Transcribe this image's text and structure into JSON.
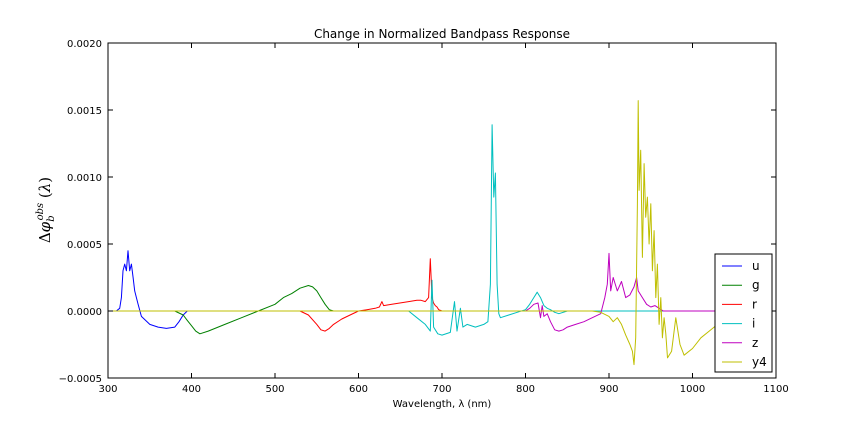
{
  "chart_data": {
    "type": "line",
    "title": "Change in Normalized Bandpass Response",
    "xlabel": "Wavelength, λ (nm)",
    "ylabel": "Δφ_b^obs (λ)",
    "xlim": [
      300,
      1100
    ],
    "ylim": [
      -0.0005,
      0.002
    ],
    "xticks": [
      "300",
      "400",
      "500",
      "600",
      "700",
      "800",
      "900",
      "1000",
      "1100"
    ],
    "yticks": [
      "−0.0005",
      "0.0000",
      "0.0005",
      "0.0010",
      "0.0015",
      "0.0020"
    ],
    "grid": false,
    "legend_position": "lower-right",
    "series": [
      {
        "name": "u",
        "color": "#0000ff",
        "x": [
          300,
          310,
          314,
          316,
          318,
          320,
          322,
          324,
          326,
          328,
          330,
          332,
          334,
          336,
          340,
          345,
          350,
          360,
          370,
          380,
          385,
          390,
          395,
          400
        ],
        "y": [
          0,
          0,
          2e-05,
          0.0001,
          0.0003,
          0.00035,
          0.0003,
          0.00045,
          0.0003,
          0.00035,
          0.00025,
          0.00015,
          0.0001,
          5e-05,
          -4e-05,
          -7e-05,
          -0.0001,
          -0.00012,
          -0.00013,
          -0.00012,
          -8e-05,
          -3e-05,
          0,
          0
        ]
      },
      {
        "name": "g",
        "color": "#008000",
        "x": [
          300,
          380,
          390,
          395,
          400,
          405,
          410,
          420,
          440,
          460,
          480,
          500,
          510,
          520,
          530,
          540,
          545,
          550,
          555,
          560,
          565,
          570,
          1100
        ],
        "y": [
          0,
          0,
          -3e-05,
          -7e-05,
          -0.00011,
          -0.00015,
          -0.00017,
          -0.00015,
          -0.0001,
          -5e-05,
          0,
          5e-05,
          0.0001,
          0.00013,
          0.00017,
          0.00019,
          0.00018,
          0.00015,
          0.0001,
          5e-05,
          1e-05,
          0,
          0
        ]
      },
      {
        "name": "r",
        "color": "#ff0000",
        "x": [
          300,
          530,
          540,
          550,
          555,
          560,
          565,
          570,
          580,
          590,
          600,
          610,
          620,
          625,
          628,
          630,
          640,
          660,
          670,
          675,
          680,
          684,
          686,
          688,
          690,
          692,
          694,
          696,
          700,
          1100
        ],
        "y": [
          0,
          0,
          -3e-05,
          -0.0001,
          -0.00014,
          -0.00015,
          -0.00013,
          -0.0001,
          -6e-05,
          -3e-05,
          0,
          1e-05,
          2e-05,
          3e-05,
          7e-05,
          4e-05,
          5e-05,
          7e-05,
          8e-05,
          8e-05,
          7e-05,
          0.0001,
          0.00039,
          0.0001,
          6e-05,
          4e-05,
          3e-05,
          1e-05,
          0,
          0
        ]
      },
      {
        "name": "i",
        "color": "#00bfbf",
        "x": [
          300,
          660,
          670,
          680,
          686,
          688,
          690,
          695,
          700,
          710,
          715,
          718,
          722,
          725,
          730,
          740,
          750,
          755,
          758,
          760,
          762,
          764,
          766,
          768,
          770,
          780,
          790,
          800,
          805,
          810,
          814,
          818,
          822,
          826,
          830,
          835,
          840,
          850,
          1100
        ],
        "y": [
          0,
          0,
          -5e-05,
          -0.0001,
          -0.00015,
          0.00023,
          -0.00012,
          -0.00017,
          -0.00018,
          -0.00016,
          7e-05,
          -0.00015,
          2e-05,
          -0.00012,
          -0.0001,
          -0.00012,
          -0.0001,
          -8e-05,
          0.0002,
          0.00139,
          0.00085,
          0.00103,
          0.0002,
          -2e-05,
          -5e-05,
          -3e-05,
          -1e-05,
          1e-05,
          5e-05,
          0.0001,
          0.00014,
          0.0001,
          4e-05,
          2e-05,
          1e-05,
          -1e-05,
          -2e-05,
          0,
          0
        ]
      },
      {
        "name": "z",
        "color": "#bf00bf",
        "x": [
          300,
          800,
          805,
          810,
          815,
          818,
          820,
          822,
          826,
          830,
          835,
          840,
          845,
          850,
          860,
          870,
          880,
          890,
          895,
          898,
          900,
          902,
          905,
          910,
          915,
          920,
          925,
          930,
          933,
          935,
          940,
          945,
          950,
          955,
          960,
          965,
          970,
          1100
        ],
        "y": [
          0,
          0,
          2e-05,
          5e-05,
          6e-05,
          -5e-05,
          4e-05,
          -4e-05,
          -2e-05,
          -8e-05,
          -0.00014,
          -0.00015,
          -0.00014,
          -0.00012,
          -0.0001,
          -8e-05,
          -5e-05,
          -2e-05,
          0.0001,
          0.0002,
          0.00043,
          0.00015,
          0.00025,
          0.00015,
          0.00022,
          0.0001,
          0.00012,
          0.00018,
          0.00025,
          0.00015,
          0.0001,
          5e-05,
          3e-05,
          4e-05,
          2e-05,
          0,
          0,
          0
        ]
      },
      {
        "name": "y4",
        "color": "#bfbf00",
        "x": [
          300,
          880,
          890,
          900,
          905,
          910,
          915,
          920,
          925,
          928,
          930,
          932,
          934,
          935,
          936,
          938,
          940,
          942,
          944,
          946,
          948,
          950,
          952,
          954,
          956,
          958,
          960,
          962,
          964,
          966,
          968,
          970,
          975,
          980,
          985,
          990,
          1000,
          1010,
          1020,
          1030,
          1040,
          1050
        ],
        "y": [
          0,
          0,
          -1e-05,
          -4e-05,
          -8e-05,
          -5e-05,
          -0.0001,
          -0.00018,
          -0.00025,
          -0.0003,
          -0.0004,
          -0.0002,
          0.0008,
          0.00157,
          0.0009,
          0.0012,
          0.0004,
          0.0011,
          0.0007,
          0.00085,
          0.0005,
          0.0008,
          0.0003,
          0.0006,
          0.0001,
          0.00035,
          -0.0001,
          0.0001,
          -0.0002,
          -5e-05,
          -0.00017,
          -0.00035,
          -0.0003,
          -5e-05,
          -0.00025,
          -0.00033,
          -0.00028,
          -0.0002,
          -0.00015,
          -0.0001,
          -5e-05,
          0
        ]
      }
    ]
  }
}
